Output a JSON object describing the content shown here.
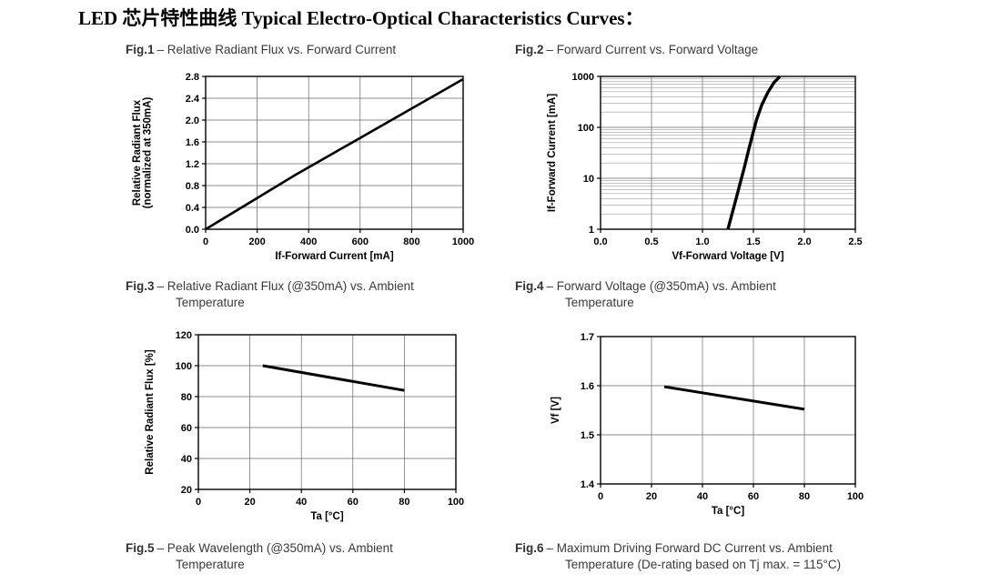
{
  "page": {
    "title": "LED 芯片特性曲线 Typical Electro-Optical Characteristics Curves："
  },
  "figures": [
    {
      "label": "Fig.1",
      "caption": "– Relative Radiant Flux vs. Forward Current"
    },
    {
      "label": "Fig.2",
      "caption": "– Forward Current vs. Forward Voltage"
    },
    {
      "label": "Fig.3",
      "caption": "– Relative Radiant Flux (@350mA) vs. Ambient Temperature"
    },
    {
      "label": "Fig.4",
      "caption": "– Forward Voltage (@350mA) vs. Ambient Temperature"
    },
    {
      "label": "Fig.5",
      "caption": "– Peak Wavelength (@350mA) vs. Ambient Temperature"
    },
    {
      "label": "Fig.6",
      "caption": "– Maximum Driving Forward DC Current vs. Ambient Temperature (De-rating based on Tj max. = 115°C)"
    }
  ],
  "chart_data": [
    {
      "type": "line",
      "title": "Relative Radiant Flux vs. Forward Current",
      "xlabel": "If-Forward Current [mA]",
      "ylabel": [
        "Relative Radiant Flux",
        "(normalized at 350mA)"
      ],
      "xlim": [
        0,
        1000
      ],
      "ylim": [
        0,
        2.8
      ],
      "xscale": "linear",
      "yscale": "linear",
      "grid": true,
      "xticks": [
        0,
        200,
        400,
        600,
        800,
        1000
      ],
      "xtick_labels": [
        "0",
        "200",
        "400",
        "600",
        "800",
        "1000"
      ],
      "yticks": [
        0.0,
        0.4,
        0.8,
        1.2,
        1.6,
        2.0,
        2.4,
        2.8
      ],
      "ytick_labels": [
        "0.0",
        "0.4",
        "0.8",
        "1.2",
        "1.6",
        "2.0",
        "2.4",
        "2.8"
      ],
      "points": [
        [
          0,
          0.0
        ],
        [
          350,
          1.0
        ],
        [
          1000,
          2.75
        ]
      ]
    },
    {
      "type": "line",
      "title": "Forward Current vs. Forward Voltage",
      "xlabel": "Vf-Forward Voltage [V]",
      "ylabel": [
        "If-Forward Current [mA]"
      ],
      "xlim": [
        0.0,
        2.5
      ],
      "ylim": [
        1,
        1000
      ],
      "xscale": "linear",
      "yscale": "log",
      "grid": true,
      "xticks": [
        0.0,
        0.5,
        1.0,
        1.5,
        2.0,
        2.5
      ],
      "xtick_labels": [
        "0.0",
        "0.5",
        "1.0",
        "1.5",
        "2.0",
        "2.5"
      ],
      "yticks": [
        1,
        10,
        100,
        1000
      ],
      "ytick_labels": [
        "1",
        "10",
        "100",
        "1000"
      ],
      "points": [
        [
          1.25,
          1
        ],
        [
          1.29,
          2
        ],
        [
          1.33,
          4
        ],
        [
          1.37,
          8
        ],
        [
          1.41,
          16
        ],
        [
          1.45,
          34
        ],
        [
          1.49,
          70
        ],
        [
          1.53,
          140
        ],
        [
          1.58,
          270
        ],
        [
          1.64,
          480
        ],
        [
          1.7,
          750
        ],
        [
          1.76,
          1000
        ]
      ]
    },
    {
      "type": "line",
      "title": "Relative Radiant Flux (@350mA) vs. Ambient Temperature",
      "xlabel": "Ta [°C]",
      "ylabel": [
        "Relative Radiant Flux [%]"
      ],
      "xlim": [
        0,
        100
      ],
      "ylim": [
        20,
        120
      ],
      "xscale": "linear",
      "yscale": "linear",
      "grid": true,
      "xticks": [
        0,
        20,
        40,
        60,
        80,
        100
      ],
      "xtick_labels": [
        "0",
        "20",
        "40",
        "60",
        "80",
        "100"
      ],
      "yticks": [
        20,
        40,
        60,
        80,
        100,
        120
      ],
      "ytick_labels": [
        "20",
        "40",
        "60",
        "80",
        "100",
        "120"
      ],
      "points": [
        [
          25,
          100
        ],
        [
          80,
          84
        ]
      ]
    },
    {
      "type": "line",
      "title": "Forward Voltage (@350mA) vs. Ambient Temperature",
      "xlabel": "Ta [°C]",
      "ylabel": [
        "Vf [V]"
      ],
      "xlim": [
        0,
        100
      ],
      "ylim": [
        1.4,
        1.7
      ],
      "xscale": "linear",
      "yscale": "linear",
      "grid": true,
      "xticks": [
        0,
        20,
        40,
        60,
        80,
        100
      ],
      "xtick_labels": [
        "0",
        "20",
        "40",
        "60",
        "80",
        "100"
      ],
      "yticks": [
        1.4,
        1.5,
        1.6,
        1.7
      ],
      "ytick_labels": [
        "1.4",
        "1.5",
        "1.6",
        "1.7"
      ],
      "points": [
        [
          25,
          1.598
        ],
        [
          80,
          1.552
        ]
      ]
    }
  ]
}
